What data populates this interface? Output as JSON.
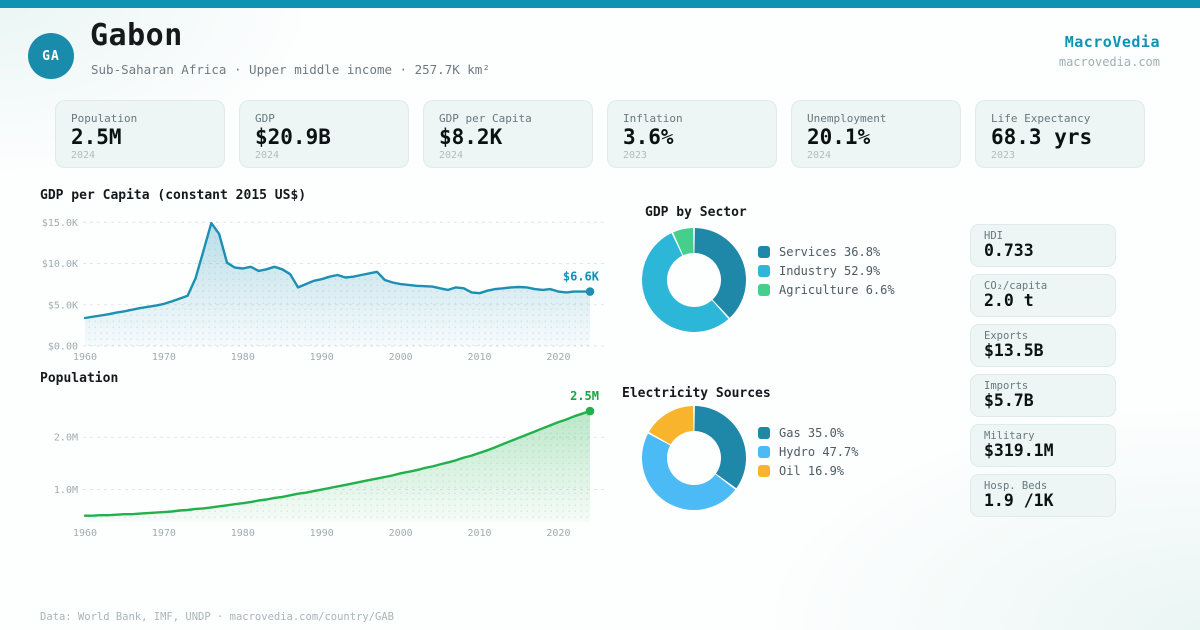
{
  "brand": {
    "name": "MacroVedia",
    "domain": "macrovedia.com",
    "accent": "#0e93b2"
  },
  "header": {
    "iso": "GA",
    "country": "Gabon",
    "subtitle": "Sub-Saharan Africa · Upper middle income · 257.7K km²"
  },
  "stat_cards": [
    {
      "label": "Population",
      "value": "2.5M",
      "year": "2024"
    },
    {
      "label": "GDP",
      "value": "$20.9B",
      "year": "2024"
    },
    {
      "label": "GDP per Capita",
      "value": "$8.2K",
      "year": "2024"
    },
    {
      "label": "Inflation",
      "value": "3.6%",
      "year": "2023"
    },
    {
      "label": "Unemployment",
      "value": "20.1%",
      "year": "2024"
    },
    {
      "label": "Life Expectancy",
      "value": "68.3 yrs",
      "year": "2023"
    }
  ],
  "side_stats": [
    {
      "label": "HDI",
      "value": "0.733"
    },
    {
      "label": "CO₂/capita",
      "value": "2.0 t"
    },
    {
      "label": "Exports",
      "value": "$13.5B"
    },
    {
      "label": "Imports",
      "value": "$5.7B"
    },
    {
      "label": "Military",
      "value": "$319.1M"
    },
    {
      "label": "Hosp. Beds",
      "value": "1.9 /1K"
    }
  ],
  "footer": {
    "text": "Data: World Bank, IMF, UNDP · macrovedia.com/country/GAB"
  },
  "chart_data": [
    {
      "type": "area",
      "title": "GDP per Capita (constant 2015 US$)",
      "color": "#1d8fb2",
      "label_color": "#0e93b2",
      "end_label": "$6.6K",
      "x_start": 1960,
      "xlim": [
        1960,
        2024
      ],
      "x_ticks": [
        1960,
        1970,
        1980,
        1990,
        2000,
        2010,
        2020
      ],
      "ylim": [
        0,
        16000
      ],
      "y_ticks": [
        {
          "v": 15000,
          "label": "$15.0K"
        },
        {
          "v": 10000,
          "label": "$10.0K"
        },
        {
          "v": 5000,
          "label": "$5.0K"
        },
        {
          "v": 0,
          "label": "$0.00"
        }
      ],
      "values": [
        3400,
        3550,
        3700,
        3850,
        4050,
        4200,
        4400,
        4600,
        4750,
        4900,
        5100,
        5400,
        5750,
        6100,
        8200,
        11500,
        14900,
        13600,
        10100,
        9500,
        9400,
        9600,
        9100,
        9300,
        9600,
        9300,
        8700,
        7100,
        7500,
        7900,
        8100,
        8400,
        8600,
        8300,
        8400,
        8600,
        8800,
        9000,
        8000,
        7700,
        7500,
        7400,
        7300,
        7250,
        7200,
        7000,
        6800,
        7100,
        7000,
        6500,
        6400,
        6700,
        6900,
        7000,
        7100,
        7150,
        7100,
        6900,
        6800,
        6900,
        6600,
        6500,
        6600,
        6600,
        6600
      ]
    },
    {
      "type": "area",
      "title": "Population",
      "color": "#22b04c",
      "label_color": "#18a542",
      "end_label": "2.5M",
      "x_start": 1960,
      "xlim": [
        1960,
        2024
      ],
      "x_ticks": [
        1960,
        1970,
        1980,
        1990,
        2000,
        2010,
        2020
      ],
      "ylim": [
        0.38,
        2.75
      ],
      "y_ticks": [
        {
          "v": 2.0,
          "label": "2.0M"
        },
        {
          "v": 1.0,
          "label": "1.0M"
        }
      ],
      "values": [
        0.5,
        0.5,
        0.51,
        0.51,
        0.52,
        0.53,
        0.53,
        0.54,
        0.55,
        0.56,
        0.57,
        0.58,
        0.6,
        0.61,
        0.63,
        0.64,
        0.66,
        0.68,
        0.7,
        0.72,
        0.74,
        0.76,
        0.79,
        0.81,
        0.84,
        0.86,
        0.89,
        0.92,
        0.94,
        0.97,
        1.0,
        1.03,
        1.06,
        1.09,
        1.12,
        1.15,
        1.18,
        1.21,
        1.24,
        1.27,
        1.31,
        1.34,
        1.37,
        1.41,
        1.44,
        1.48,
        1.52,
        1.56,
        1.61,
        1.65,
        1.7,
        1.75,
        1.81,
        1.87,
        1.93,
        1.99,
        2.05,
        2.11,
        2.17,
        2.23,
        2.29,
        2.34,
        2.4,
        2.45,
        2.5
      ]
    },
    {
      "type": "donut",
      "title": "GDP by Sector",
      "slices": [
        {
          "label": "Services",
          "value": 36.8,
          "legend": "Services 36.8%",
          "color": "#1f87a8"
        },
        {
          "label": "Industry",
          "value": 52.9,
          "legend": "Industry 52.9%",
          "color": "#2cb6d8"
        },
        {
          "label": "Agriculture",
          "value": 6.6,
          "legend": "Agriculture 6.6%",
          "color": "#44d08c"
        }
      ]
    },
    {
      "type": "donut",
      "title": "Electricity Sources",
      "slices": [
        {
          "label": "Gas",
          "value": 35.0,
          "legend": "Gas 35.0%",
          "color": "#1f87a8"
        },
        {
          "label": "Hydro",
          "value": 47.7,
          "legend": "Hydro 47.7%",
          "color": "#4cbbf5"
        },
        {
          "label": "Oil",
          "value": 16.9,
          "legend": "Oil 16.9%",
          "color": "#f7b42c"
        }
      ]
    }
  ]
}
